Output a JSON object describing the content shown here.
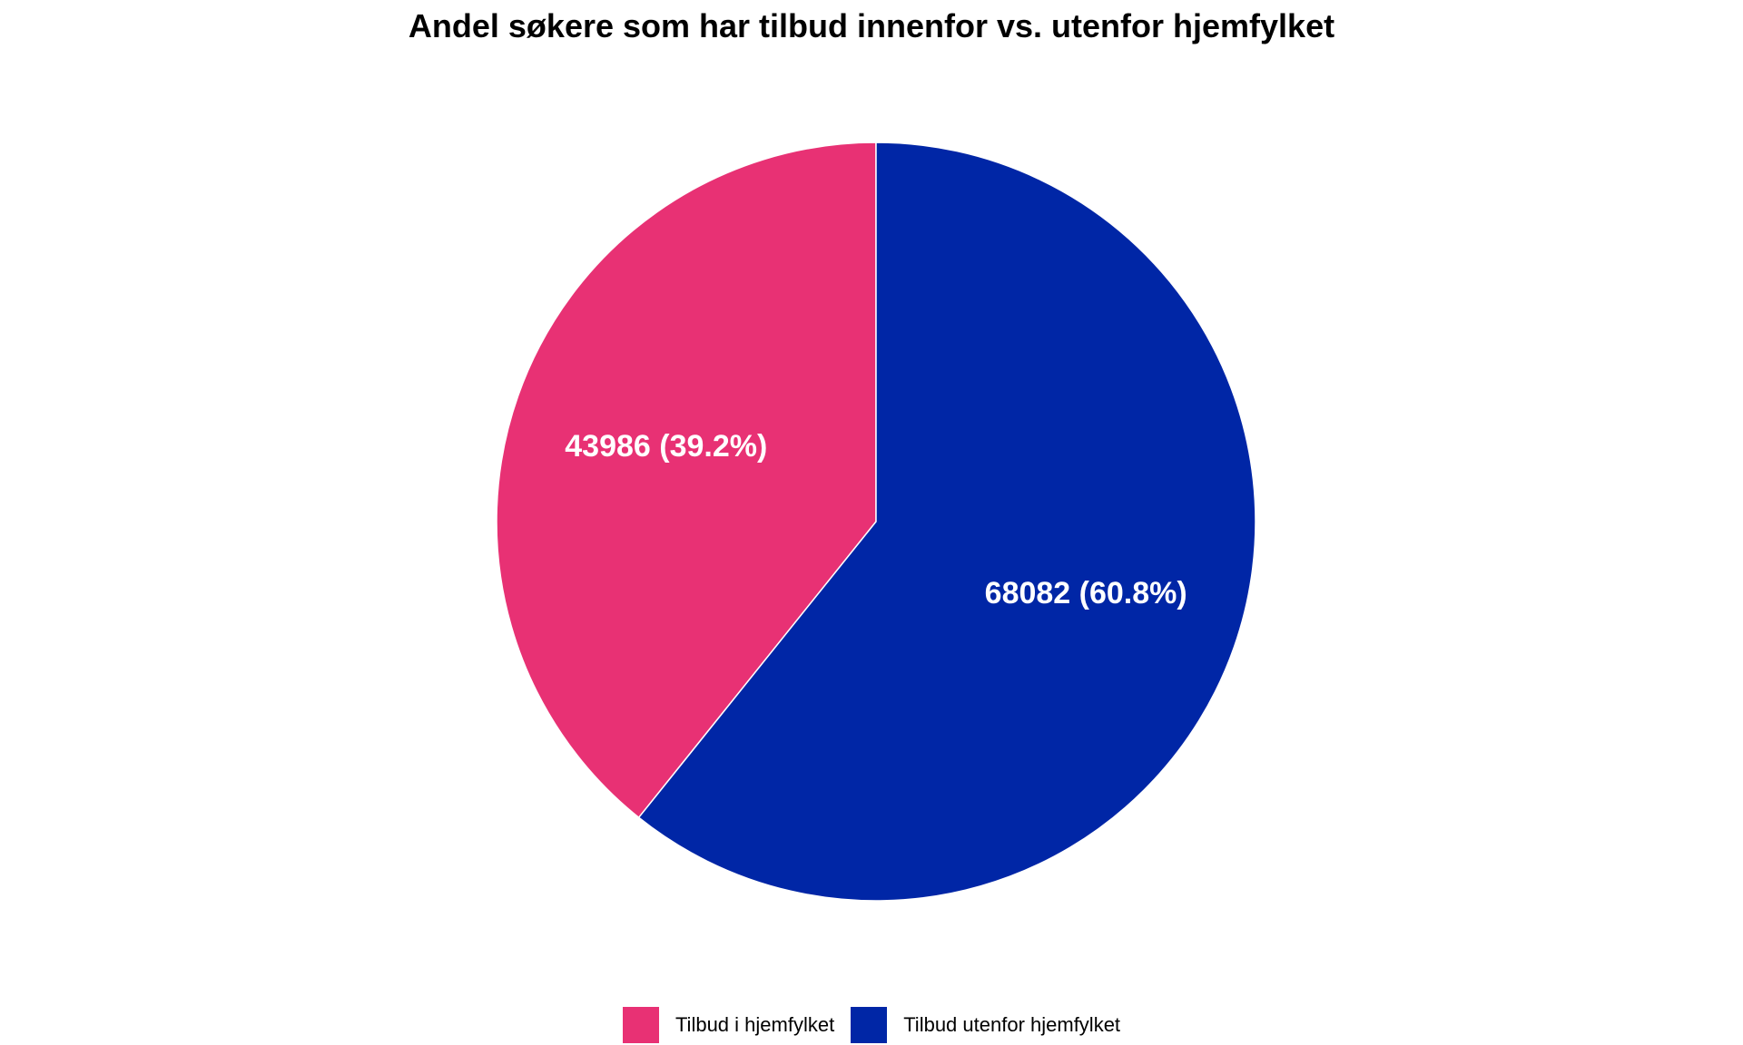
{
  "chart_data": {
    "type": "pie",
    "title": "Andel søkere som har tilbud innenfor vs. utenfor hjemfylket",
    "slices": [
      {
        "name": "Tilbud i hjemfylket",
        "value": 43986,
        "percent": 39.2,
        "label": "43986 (39.2%)",
        "color": "#E83174"
      },
      {
        "name": "Tilbud utenfor hjemfylket",
        "value": 68082,
        "percent": 60.8,
        "label": "68082 (60.8%)",
        "color": "#0026A6"
      }
    ],
    "legend": {
      "placement": "bottom",
      "entries": [
        "Tilbud i hjemfylket",
        "Tilbud utenfor hjemfylket"
      ]
    }
  }
}
